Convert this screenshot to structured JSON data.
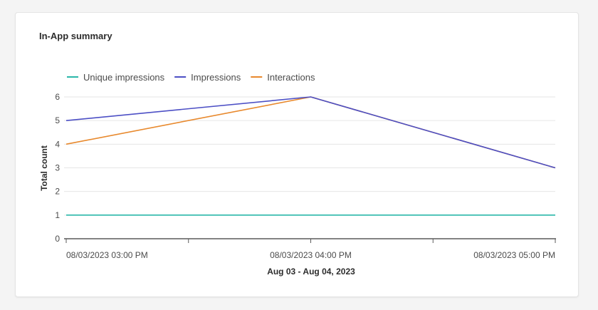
{
  "card": {
    "title": "In-App summary"
  },
  "chart_data": {
    "type": "line",
    "xlabel": "Aug 03 - Aug 04, 2023",
    "ylabel": "Total count",
    "ylim": [
      0,
      6
    ],
    "y_ticks": [
      "0",
      "1",
      "2",
      "3",
      "4",
      "5",
      "6"
    ],
    "x": [
      "08/03/2023 03:00 PM",
      "08/03/2023 04:00 PM",
      "08/03/2023 05:00 PM"
    ],
    "grid": true,
    "legend_position": "top-left",
    "series": [
      {
        "name": "Unique impressions",
        "color": "#2ab7a9",
        "values": [
          1,
          1,
          1
        ]
      },
      {
        "name": "Impressions",
        "color": "#4c4fc5",
        "values": [
          5,
          6,
          3
        ]
      },
      {
        "name": "Interactions",
        "color": "#e8892d",
        "values": [
          4,
          6,
          3
        ]
      }
    ]
  }
}
